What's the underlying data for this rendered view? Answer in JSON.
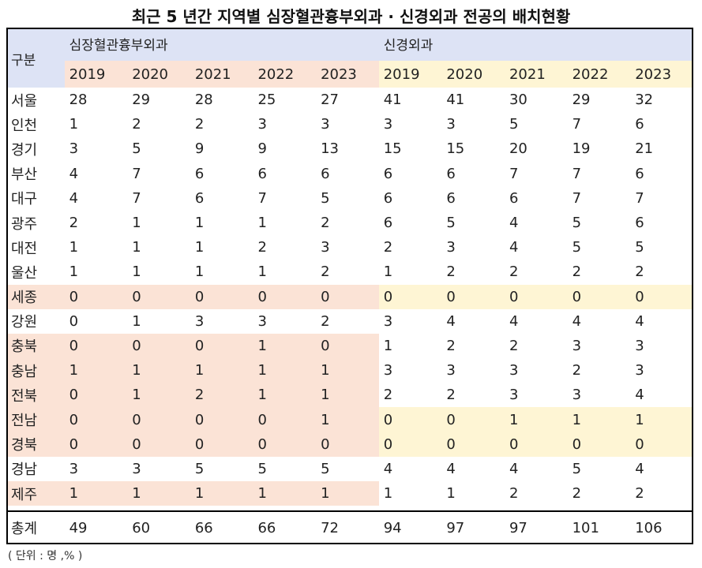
{
  "title": "최근 5 년간 지역별 심장혈관흉부외과 · 신경외과 전공의 배치현황",
  "header": {
    "row_label": "구분",
    "group1": "심장혈관흉부외과",
    "group2": "신경외과",
    "years": [
      "2019",
      "2020",
      "2021",
      "2022",
      "2023"
    ]
  },
  "rows": [
    {
      "region": "서울",
      "cardio": [
        "28",
        "29",
        "28",
        "25",
        "27"
      ],
      "neuro": [
        "41",
        "41",
        "30",
        "29",
        "32"
      ],
      "hl_cardio": false,
      "hl_neuro": false
    },
    {
      "region": "인천",
      "cardio": [
        "1",
        "2",
        "2",
        "3",
        "3"
      ],
      "neuro": [
        "3",
        "3",
        "5",
        "7",
        "6"
      ],
      "hl_cardio": false,
      "hl_neuro": false
    },
    {
      "region": "경기",
      "cardio": [
        "3",
        "5",
        "9",
        "9",
        "13"
      ],
      "neuro": [
        "15",
        "15",
        "20",
        "19",
        "21"
      ],
      "hl_cardio": false,
      "hl_neuro": false
    },
    {
      "region": "부산",
      "cardio": [
        "4",
        "7",
        "6",
        "6",
        "6"
      ],
      "neuro": [
        "6",
        "6",
        "7",
        "7",
        "6"
      ],
      "hl_cardio": false,
      "hl_neuro": false
    },
    {
      "region": "대구",
      "cardio": [
        "4",
        "7",
        "6",
        "7",
        "5"
      ],
      "neuro": [
        "6",
        "6",
        "6",
        "7",
        "7"
      ],
      "hl_cardio": false,
      "hl_neuro": false
    },
    {
      "region": "광주",
      "cardio": [
        "2",
        "1",
        "1",
        "1",
        "2"
      ],
      "neuro": [
        "6",
        "5",
        "4",
        "5",
        "6"
      ],
      "hl_cardio": false,
      "hl_neuro": false
    },
    {
      "region": "대전",
      "cardio": [
        "1",
        "1",
        "1",
        "2",
        "3"
      ],
      "neuro": [
        "2",
        "3",
        "4",
        "5",
        "5"
      ],
      "hl_cardio": false,
      "hl_neuro": false
    },
    {
      "region": "울산",
      "cardio": [
        "1",
        "1",
        "1",
        "1",
        "2"
      ],
      "neuro": [
        "1",
        "2",
        "2",
        "2",
        "2"
      ],
      "hl_cardio": false,
      "hl_neuro": false
    },
    {
      "region": "세종",
      "cardio": [
        "0",
        "0",
        "0",
        "0",
        "0"
      ],
      "neuro": [
        "0",
        "0",
        "0",
        "0",
        "0"
      ],
      "hl_cardio": true,
      "hl_neuro": true
    },
    {
      "region": "강원",
      "cardio": [
        "0",
        "1",
        "3",
        "3",
        "2"
      ],
      "neuro": [
        "3",
        "4",
        "4",
        "4",
        "4"
      ],
      "hl_cardio": false,
      "hl_neuro": false
    },
    {
      "region": "충북",
      "cardio": [
        "0",
        "0",
        "0",
        "1",
        "0"
      ],
      "neuro": [
        "1",
        "2",
        "2",
        "3",
        "3"
      ],
      "hl_cardio": true,
      "hl_neuro": false
    },
    {
      "region": "충남",
      "cardio": [
        "1",
        "1",
        "1",
        "1",
        "1"
      ],
      "neuro": [
        "3",
        "3",
        "3",
        "2",
        "3"
      ],
      "hl_cardio": true,
      "hl_neuro": false
    },
    {
      "region": "전북",
      "cardio": [
        "0",
        "1",
        "2",
        "1",
        "1"
      ],
      "neuro": [
        "2",
        "2",
        "3",
        "3",
        "4"
      ],
      "hl_cardio": true,
      "hl_neuro": false
    },
    {
      "region": "전남",
      "cardio": [
        "0",
        "0",
        "0",
        "0",
        "1"
      ],
      "neuro": [
        "0",
        "0",
        "1",
        "1",
        "1"
      ],
      "hl_cardio": true,
      "hl_neuro": true
    },
    {
      "region": "경북",
      "cardio": [
        "0",
        "0",
        "0",
        "0",
        "0"
      ],
      "neuro": [
        "0",
        "0",
        "0",
        "0",
        "0"
      ],
      "hl_cardio": true,
      "hl_neuro": true
    },
    {
      "region": "경남",
      "cardio": [
        "3",
        "3",
        "5",
        "5",
        "5"
      ],
      "neuro": [
        "4",
        "4",
        "4",
        "5",
        "4"
      ],
      "hl_cardio": false,
      "hl_neuro": false
    },
    {
      "region": "제주",
      "cardio": [
        "1",
        "1",
        "1",
        "1",
        "1"
      ],
      "neuro": [
        "1",
        "1",
        "2",
        "2",
        "2"
      ],
      "hl_cardio": true,
      "hl_neuro": false
    }
  ],
  "total": {
    "region": "총계",
    "cardio": [
      "49",
      "60",
      "66",
      "66",
      "72"
    ],
    "neuro": [
      "94",
      "97",
      "97",
      "101",
      "106"
    ]
  },
  "unit_note": "( 단위 : 명 ,% )",
  "colors": {
    "header_blue": "#dde3f5",
    "highlight_pink": "#fbe3d6",
    "highlight_yellow": "#fef5d4"
  }
}
